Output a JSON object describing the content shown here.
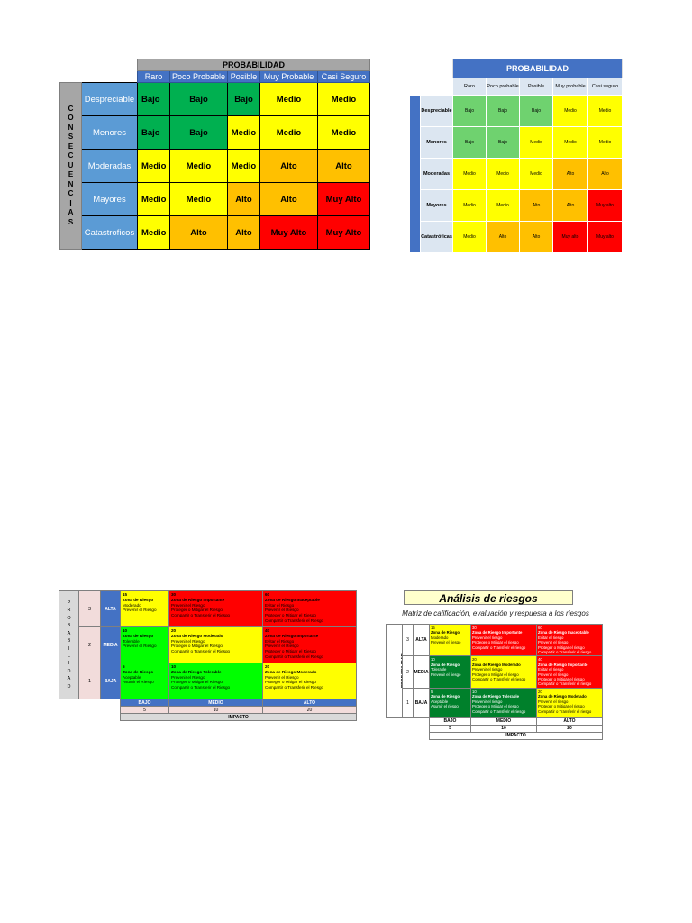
{
  "colors": {
    "green": "#00b050",
    "yellow": "#ffff00",
    "orange": "#ffc000",
    "red": "#ff0000",
    "blue": "#4472c4",
    "dark_green": "#00802b"
  },
  "matrix1": {
    "title": "PROBABILIDAD",
    "prob_headers": [
      "Raro",
      "Poco Probable",
      "Posible",
      "Muy Probable",
      "Casi Seguro"
    ],
    "vertical_letters": [
      "C",
      "O",
      "N",
      "S",
      "E",
      "C",
      "U",
      "E",
      "N",
      "C",
      "I",
      "A",
      "S"
    ],
    "rows": [
      {
        "label": "Despreciable",
        "cells": [
          {
            "text": "Bajo",
            "color": "#00b050"
          },
          {
            "text": "Bajo",
            "color": "#00b050"
          },
          {
            "text": "Bajo",
            "color": "#00b050"
          },
          {
            "text": "Medio",
            "color": "#ffff00"
          },
          {
            "text": "Medio",
            "color": "#ffff00"
          }
        ]
      },
      {
        "label": "Menores",
        "cells": [
          {
            "text": "Bajo",
            "color": "#00b050"
          },
          {
            "text": "Bajo",
            "color": "#00b050"
          },
          {
            "text": "Medio",
            "color": "#ffff00"
          },
          {
            "text": "Medio",
            "color": "#ffff00"
          },
          {
            "text": "Medio",
            "color": "#ffff00"
          }
        ]
      },
      {
        "label": "Moderadas",
        "cells": [
          {
            "text": "Medio",
            "color": "#ffff00"
          },
          {
            "text": "Medio",
            "color": "#ffff00"
          },
          {
            "text": "Medio",
            "color": "#ffff00"
          },
          {
            "text": "Alto",
            "color": "#ffc000"
          },
          {
            "text": "Alto",
            "color": "#ffc000"
          }
        ]
      },
      {
        "label": "Mayores",
        "cells": [
          {
            "text": "Medio",
            "color": "#ffff00"
          },
          {
            "text": "Medio",
            "color": "#ffff00"
          },
          {
            "text": "Alto",
            "color": "#ffc000"
          },
          {
            "text": "Alto",
            "color": "#ffc000"
          },
          {
            "text": "Muy Alto",
            "color": "#ff0000"
          }
        ]
      },
      {
        "label": "Catastroficos",
        "cells": [
          {
            "text": "Medio",
            "color": "#ffff00"
          },
          {
            "text": "Alto",
            "color": "#ffc000"
          },
          {
            "text": "Alto",
            "color": "#ffc000"
          },
          {
            "text": "Muy Alto",
            "color": "#ff0000"
          },
          {
            "text": "Muy Alto",
            "color": "#ff0000"
          }
        ]
      }
    ]
  },
  "matrix2": {
    "title": "PROBABILIDAD",
    "vertical_label": "CONSECUENCIAS",
    "prob_headers": [
      "Raro",
      "Poco probable",
      "Posible",
      "Muy probable",
      "Casi seguro"
    ],
    "rows": [
      {
        "label": "Despreciable",
        "cells": [
          {
            "text": "Bajo",
            "color": "#6fd26f"
          },
          {
            "text": "Bajo",
            "color": "#6fd26f"
          },
          {
            "text": "Bajo",
            "color": "#6fd26f"
          },
          {
            "text": "Medio",
            "color": "#ffff00"
          },
          {
            "text": "Medio",
            "color": "#ffff00"
          }
        ]
      },
      {
        "label": "Menores",
        "cells": [
          {
            "text": "Bajo",
            "color": "#6fd26f"
          },
          {
            "text": "Bajo",
            "color": "#6fd26f"
          },
          {
            "text": "Medio",
            "color": "#ffff00"
          },
          {
            "text": "Medio",
            "color": "#ffff00"
          },
          {
            "text": "Medio",
            "color": "#ffff00"
          }
        ]
      },
      {
        "label": "Moderadas",
        "cells": [
          {
            "text": "Medio",
            "color": "#ffff00"
          },
          {
            "text": "Medio",
            "color": "#ffff00"
          },
          {
            "text": "Medio",
            "color": "#ffff00"
          },
          {
            "text": "Alto",
            "color": "#ffc000"
          },
          {
            "text": "Alto",
            "color": "#ffc000"
          }
        ]
      },
      {
        "label": "Mayores",
        "cells": [
          {
            "text": "Medio",
            "color": "#ffff00"
          },
          {
            "text": "Medio",
            "color": "#ffff00"
          },
          {
            "text": "Alto",
            "color": "#ffc000"
          },
          {
            "text": "Alto",
            "color": "#ffc000"
          },
          {
            "text": "Muy alto",
            "color": "#ff0000"
          }
        ]
      },
      {
        "label": "Catastróficas",
        "cells": [
          {
            "text": "Medio",
            "color": "#ffff00"
          },
          {
            "text": "Alto",
            "color": "#ffc000"
          },
          {
            "text": "Alto",
            "color": "#ffc000"
          },
          {
            "text": "Muy alto",
            "color": "#ff0000"
          },
          {
            "text": "Muy alto",
            "color": "#ff0000"
          }
        ]
      }
    ]
  },
  "matrix3": {
    "vertical_letters": [
      "P",
      "R",
      "O",
      "B",
      "A",
      "B",
      "I",
      "L",
      "I",
      "D",
      "A",
      "D"
    ],
    "rows": [
      {
        "num": "3",
        "level": "ALTA",
        "cells": [
          {
            "color": "#ffff00",
            "lines": [
              "15",
              "Zona de Riesgo",
              "Moderado",
              "Prevenir el Riesgo"
            ]
          },
          {
            "color": "#ff0000",
            "lines": [
              "30",
              "Zona de Riesgo Importante",
              "Prevenir el Riesgo",
              "Proteger o Mitigar el Riesgo",
              "Compartir o Transferir el Riesgo"
            ]
          },
          {
            "color": "#ff0000",
            "lines": [
              "60",
              "Zona de Riesgo Inaceptable",
              "Evitar el Riesgo",
              "Prevenir el Riesgo",
              "Proteger o Mitigar el Riesgo",
              "Compartir o Transferir el Riesgo"
            ]
          }
        ]
      },
      {
        "num": "2",
        "level": "MEDIA",
        "cells": [
          {
            "color": "#00ff00",
            "lines": [
              "10",
              "Zona de Riesgo",
              "Tolerable",
              "Prevenir el Riesgo"
            ]
          },
          {
            "color": "#ffff00",
            "lines": [
              "20",
              "Zona de Riesgo Moderado",
              "Prevenir el Riesgo",
              "Proteger o Mitigar el Riesgo",
              "Compartir o Transferir el Riesgo"
            ]
          },
          {
            "color": "#ff0000",
            "lines": [
              "40",
              "Zona de Riesgo Importante",
              "Evitar el Riesgo",
              "Prevenir el Riesgo",
              "Proteger o Mitigar el Riesgo",
              "Compartir o Transferir el Riesgo"
            ]
          }
        ]
      },
      {
        "num": "1",
        "level": "BAJA",
        "cells": [
          {
            "color": "#00ff00",
            "lines": [
              "5",
              "Zona de Riesgo",
              "Aceptable",
              "Asumir el Riesgo"
            ]
          },
          {
            "color": "#00ff00",
            "lines": [
              "10",
              "Zona de Riesgo Tolerable",
              "Prevenir el Riesgo",
              "Proteger o Mitigar el Riesgo",
              "Compartir o Transferir el Riesgo"
            ]
          },
          {
            "color": "#ffff00",
            "lines": [
              "20",
              "Zona de Riesgo Moderado",
              "Prevenir el Riesgo",
              "Proteger o Mitigar el Riesgo",
              "Compartir o Transferir el Riesgo"
            ]
          }
        ]
      }
    ],
    "impact_levels": [
      "BAJO",
      "MEDIO",
      "ALTO"
    ],
    "impact_values": [
      "5",
      "10",
      "20"
    ],
    "impact_title": "IMPACTO"
  },
  "matrix4": {
    "title": "Análisis de riesgos",
    "subtitle": "Matriz de calificación, evaluación y respuesta a los riesgos",
    "vertical_label": "PROBABILIDAD",
    "rows": [
      {
        "num": "3",
        "level": "ALTA",
        "cells": [
          {
            "color": "#ffff00",
            "lines": [
              "15",
              "Zona de Riesgo",
              "Moderado",
              "Prevenir el riesgo"
            ],
            "white": false
          },
          {
            "color": "#ff0000",
            "lines": [
              "30",
              "Zona de Riesgo Importante",
              "Prevenir el riesgo",
              "Proteger o Mitigar el riesgo",
              "Compartir o Transferir el riesgo"
            ],
            "white": true
          },
          {
            "color": "#ff0000",
            "lines": [
              "60",
              "Zona de Riesgo Inaceptable",
              "Evitar el riesgo",
              "Prevenir el riesgo",
              "Proteger o Mitigar el riesgo",
              "Compartir o Transferir el riesgo"
            ],
            "white": true
          }
        ]
      },
      {
        "num": "2",
        "level": "MEDIA",
        "cells": [
          {
            "color": "#00802b",
            "lines": [
              "10",
              "Zona de Riesgo",
              "Tolerable",
              "Prevenir el riesgo"
            ],
            "white": true
          },
          {
            "color": "#ffff00",
            "lines": [
              "20",
              "Zona de Riesgo Moderado",
              "Prevenir el riesgo",
              "Proteger o Mitigar el riesgo",
              "Compartir o Transferir el riesgo"
            ],
            "white": false
          },
          {
            "color": "#ff0000",
            "lines": [
              "40",
              "Zona de Riesgo Importante",
              "Evitar el riesgo",
              "Prevenir el riesgo",
              "Proteger o Mitigar el riesgo",
              "Compartir o Transferir el riesgo"
            ],
            "white": true
          }
        ]
      },
      {
        "num": "1",
        "level": "BAJA",
        "cells": [
          {
            "color": "#00802b",
            "lines": [
              "5",
              "Zona de Riesgo",
              "Aceptable",
              "Asumir el riesgo"
            ],
            "white": true
          },
          {
            "color": "#00802b",
            "lines": [
              "10",
              "Zona de Riesgo Tolerable",
              "Prevenir el riesgo",
              "Proteger o Mitigar el riesgo",
              "Compartir o Transferir el riesgo"
            ],
            "white": true
          },
          {
            "color": "#ffff00",
            "lines": [
              "20",
              "Zona de Riesgo Moderado",
              "Prevenir el riesgo",
              "Proteger o Mitigar el riesgo",
              "Compartir o Transferir el riesgo"
            ],
            "white": false
          }
        ]
      }
    ],
    "impact_levels": [
      "BAJO",
      "MEDIO",
      "ALTO"
    ],
    "impact_values": [
      "5",
      "10",
      "20"
    ],
    "impact_title": "IMPACTO"
  }
}
